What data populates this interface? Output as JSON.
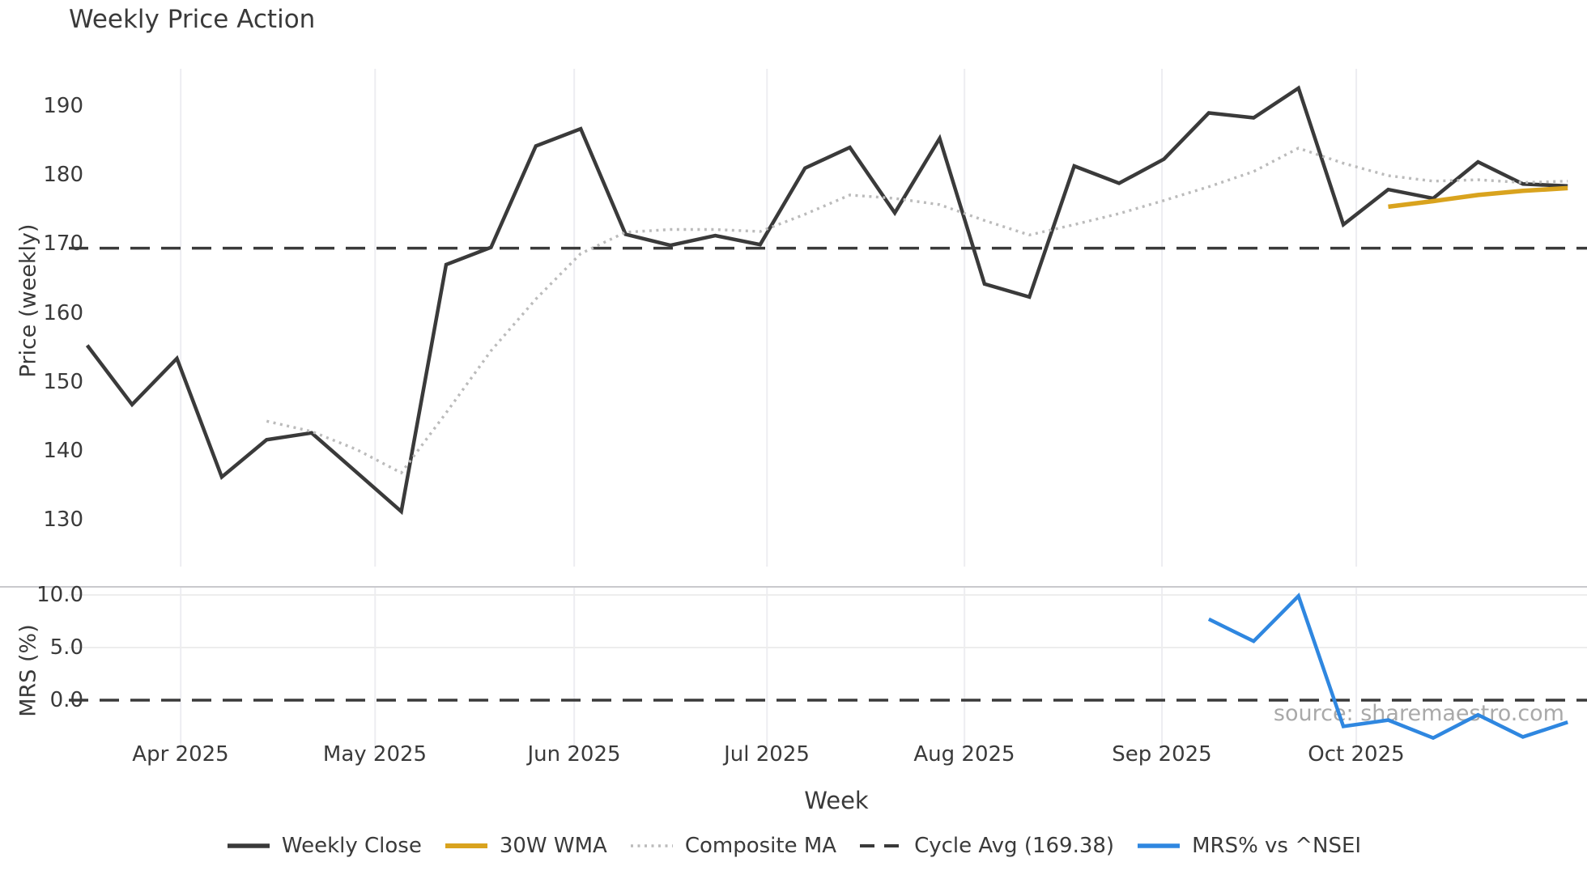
{
  "chart_data": {
    "type": "line",
    "title": "Weekly Price Action",
    "xlabel": "Week",
    "source_text": "source: sharemaestro.com",
    "x_range": [
      -0.41,
      33.43
    ],
    "x_ticks": [
      {
        "label": "Apr 2025",
        "week_index": 2.085
      },
      {
        "label": "May 2025",
        "week_index": 6.417
      },
      {
        "label": "Jun 2025",
        "week_index": 10.856
      },
      {
        "label": "Jul 2025",
        "week_index": 15.152
      },
      {
        "label": "Aug 2025",
        "week_index": 19.554
      },
      {
        "label": "Sep 2025",
        "week_index": 23.957
      },
      {
        "label": "Oct 2025",
        "week_index": 28.289
      }
    ],
    "panels": [
      {
        "name": "price",
        "ylabel": "Price (weekly)",
        "ylim": [
          123.2,
          195.4
        ],
        "yticks": [
          {
            "label": "190",
            "value": 190
          },
          {
            "label": "180",
            "value": 180
          },
          {
            "label": "170",
            "value": 170
          },
          {
            "label": "160",
            "value": 160
          },
          {
            "label": "150",
            "value": 150
          },
          {
            "label": "140",
            "value": 140
          },
          {
            "label": "130",
            "value": 130
          }
        ],
        "reference_line": {
          "name": "Cycle Avg",
          "value": 169.38,
          "color": "#3a3a3a",
          "style": "dashed"
        },
        "series": [
          {
            "name": "Weekly Close",
            "color": "#3a3a3a",
            "style": "solid",
            "width": 4.5,
            "start_index": 0,
            "values": [
              155.3,
              146.7,
              153.4,
              136.2,
              141.6,
              142.6,
              136.9,
              131.2,
              167.0,
              169.5,
              184.2,
              186.7,
              171.4,
              169.8,
              171.2,
              169.9,
              181.0,
              184.0,
              174.5,
              185.3,
              164.2,
              162.3,
              181.3,
              178.8,
              182.3,
              189.0,
              188.3,
              192.6,
              172.8,
              177.9,
              176.6,
              181.9,
              178.7,
              178.4
            ]
          },
          {
            "name": "Composite MA",
            "color": "#bbbbbb",
            "style": "dotted",
            "width": 3.4,
            "start_index": 4,
            "values": [
              144.3,
              142.8,
              140.2,
              136.8,
              145.5,
              154.5,
              162.0,
              168.6,
              171.7,
              172.1,
              172.1,
              171.8,
              174.3,
              177.1,
              176.6,
              175.7,
              173.4,
              171.3,
              172.8,
              174.4,
              176.3,
              178.3,
              180.5,
              183.9,
              181.7,
              179.9,
              179.1,
              179.3,
              178.9,
              179.1
            ]
          },
          {
            "name": "30W WMA",
            "color": "#d9a31e",
            "style": "solid",
            "width": 5.5,
            "start_index": 29,
            "values": [
              175.4,
              176.2,
              177.1,
              177.7,
              178.1
            ]
          }
        ]
      },
      {
        "name": "mrs",
        "ylabel": "MRS (%)",
        "ylim": [
          -5.39,
          10.77
        ],
        "yticks": [
          {
            "label": "10.0",
            "value": 10
          },
          {
            "label": "5.0",
            "value": 5
          },
          {
            "label": "0.0",
            "value": 0
          }
        ],
        "gridlines": [
          10,
          5
        ],
        "reference_line": {
          "name": "Zero line",
          "value": 0,
          "color": "#3a3a3a",
          "style": "dashed"
        },
        "series": [
          {
            "name": "MRS% vs ^NSEI",
            "color": "#2f87e0",
            "style": "solid",
            "width": 4.5,
            "start_index": 25,
            "values": [
              7.7,
              5.6,
              9.9,
              -2.5,
              -1.9,
              -3.6,
              -1.4,
              -3.5,
              -2.1
            ]
          }
        ]
      }
    ],
    "legend": [
      {
        "label": "Weekly Close",
        "color": "#3a3a3a",
        "style": "solid"
      },
      {
        "label": "30W WMA",
        "color": "#d9a31e",
        "style": "solid"
      },
      {
        "label": "Composite MA",
        "color": "#bbbbbb",
        "style": "dotted"
      },
      {
        "label": "Cycle Avg (169.38)",
        "color": "#3a3a3a",
        "style": "dashed"
      },
      {
        "label": "MRS% vs ^NSEI",
        "color": "#2f87e0",
        "style": "solid"
      }
    ],
    "grid_color": "#ededf1",
    "background": "#ffffff"
  }
}
